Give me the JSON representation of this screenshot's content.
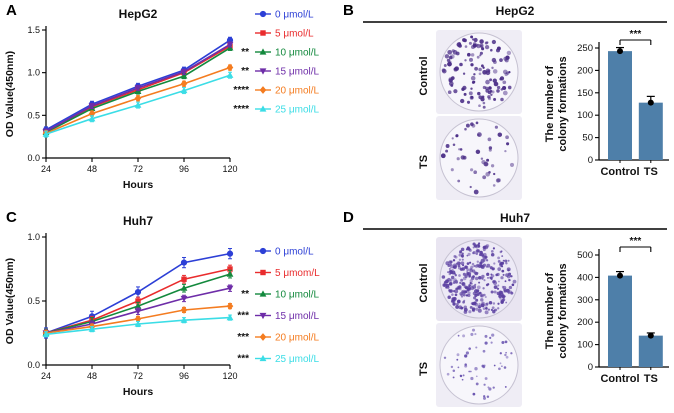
{
  "panels": {
    "A": {
      "letter": "A"
    },
    "B": {
      "letter": "B",
      "dishes": [
        {
          "label": "Control",
          "colonies": 130,
          "seed": 7,
          "dot_min": 1.1,
          "dot_max": 2.4,
          "dot_color": "#4b2e87",
          "dish_fill": "#f7f6fb",
          "photo_bg": "#efedf5"
        },
        {
          "label": "TS",
          "colonies": 48,
          "seed": 13,
          "dot_min": 1.1,
          "dot_max": 2.4,
          "dot_color": "#4b2e87",
          "dish_fill": "#f7f6fb",
          "photo_bg": "#efedf5"
        }
      ]
    },
    "C": {
      "letter": "C"
    },
    "D": {
      "letter": "D",
      "dishes": [
        {
          "label": "Control",
          "colonies": 340,
          "seed": 21,
          "dot_min": 0.9,
          "dot_max": 2.0,
          "dot_color": "#5a3fa0",
          "dish_fill": "#edeaf6",
          "photo_bg": "#e9e5f1"
        },
        {
          "label": "TS",
          "colonies": 60,
          "seed": 31,
          "dot_min": 0.8,
          "dot_max": 1.7,
          "dot_color": "#6a55b0",
          "dish_fill": "#f7f6fb",
          "photo_bg": "#efedf5"
        }
      ]
    }
  },
  "chart_data": [
    {
      "id": "A",
      "type": "line",
      "title": "HepG2",
      "xlabel": "Hours",
      "ylabel": "OD Value(450nm)",
      "x": [
        24,
        48,
        72,
        96,
        120
      ],
      "ylim": [
        0.0,
        1.5
      ],
      "yticks": [
        0.0,
        0.5,
        1.0,
        1.5
      ],
      "legend_position": "right",
      "series": [
        {
          "name": "0 μmol/L",
          "sig": "",
          "color": "#2c3fd6",
          "marker": "circle",
          "error": 0.035,
          "values": [
            0.33,
            0.63,
            0.84,
            1.03,
            1.38
          ]
        },
        {
          "name": "5 μmol/L",
          "sig": "",
          "color": "#e92c2d",
          "marker": "square",
          "error": 0.03,
          "values": [
            0.31,
            0.6,
            0.8,
            1.0,
            1.31
          ]
        },
        {
          "name": "10 μmol/L",
          "sig": "**",
          "color": "#13893d",
          "marker": "triangle-up",
          "error": 0.03,
          "values": [
            0.3,
            0.58,
            0.78,
            0.96,
            1.29
          ]
        },
        {
          "name": "15 μmol/L",
          "sig": "**",
          "color": "#6e2da8",
          "marker": "triangle-down",
          "error": 0.03,
          "values": [
            0.31,
            0.61,
            0.82,
            1.01,
            1.33
          ]
        },
        {
          "name": "20 μmol/L",
          "sig": "****",
          "color": "#f47c20",
          "marker": "diamond",
          "error": 0.03,
          "values": [
            0.29,
            0.52,
            0.7,
            0.87,
            1.06
          ]
        },
        {
          "name": "25 μmol/L",
          "sig": "****",
          "color": "#3bdde6",
          "marker": "triangle-up",
          "error": 0.035,
          "values": [
            0.28,
            0.46,
            0.62,
            0.79,
            0.97
          ]
        }
      ]
    },
    {
      "id": "B",
      "type": "bar",
      "title": "HepG2",
      "ylabel": "The number of colony formations",
      "ylabel_lines": [
        "The number of",
        "colony formations"
      ],
      "categories": [
        "Control",
        "TS"
      ],
      "values": [
        243,
        128
      ],
      "errors": [
        8,
        14
      ],
      "ylim": [
        0,
        250
      ],
      "yticks": [
        0,
        50,
        100,
        150,
        200,
        250
      ],
      "significance": "***",
      "bar_color": "#4e7fa9"
    },
    {
      "id": "C",
      "type": "line",
      "title": "Huh7",
      "xlabel": "Hours",
      "ylabel": "OD Value(450nm)",
      "x": [
        24,
        48,
        72,
        96,
        120
      ],
      "ylim": [
        0.0,
        1.0
      ],
      "yticks": [
        0.0,
        0.5,
        1.0
      ],
      "legend_position": "right",
      "series": [
        {
          "name": "0 μmol/L",
          "sig": "",
          "color": "#2c3fd6",
          "marker": "circle",
          "error": 0.04,
          "values": [
            0.25,
            0.38,
            0.57,
            0.8,
            0.87
          ]
        },
        {
          "name": "5 μmom/L",
          "sig": "",
          "color": "#e92c2d",
          "marker": "square",
          "error": 0.03,
          "values": [
            0.25,
            0.35,
            0.5,
            0.67,
            0.75
          ]
        },
        {
          "name": "10 μmol/L",
          "sig": "**",
          "color": "#13893d",
          "marker": "triangle-up",
          "error": 0.03,
          "values": [
            0.25,
            0.34,
            0.46,
            0.6,
            0.71
          ]
        },
        {
          "name": "15 μmol/L",
          "sig": "***",
          "color": "#6e2da8",
          "marker": "triangle-down",
          "error": 0.025,
          "values": [
            0.25,
            0.32,
            0.42,
            0.52,
            0.6
          ]
        },
        {
          "name": "20 μmol/L",
          "sig": "***",
          "color": "#f47c20",
          "marker": "diamond",
          "error": 0.02,
          "values": [
            0.25,
            0.3,
            0.36,
            0.43,
            0.46
          ]
        },
        {
          "name": "25 μmol/L",
          "sig": "***",
          "color": "#3bdde6",
          "marker": "triangle-up",
          "error": 0.02,
          "values": [
            0.24,
            0.28,
            0.32,
            0.35,
            0.37
          ]
        }
      ]
    },
    {
      "id": "D",
      "type": "bar",
      "title": "Huh7",
      "ylabel": "The number of colony formations",
      "ylabel_lines": [
        "The number of",
        "colony formations"
      ],
      "categories": [
        "Control",
        "TS"
      ],
      "values": [
        408,
        140
      ],
      "errors": [
        18,
        12
      ],
      "ylim": [
        0,
        500
      ],
      "yticks": [
        0,
        100,
        200,
        300,
        400,
        500
      ],
      "significance": "***",
      "bar_color": "#4e7fa9"
    }
  ]
}
